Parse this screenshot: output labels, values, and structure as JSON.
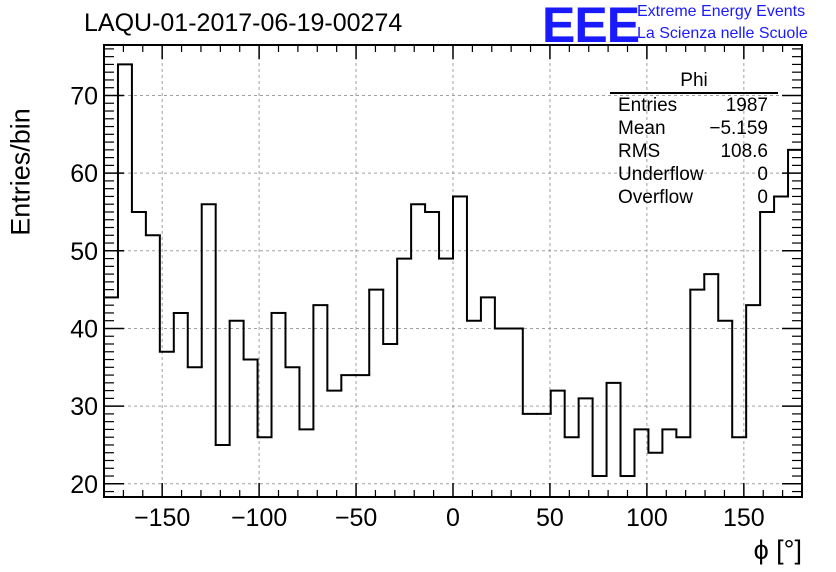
{
  "title": "LAQU-01-2017-06-19-00274",
  "logo": {
    "mark": "EEE",
    "line1": "Extreme Energy Events",
    "line2": "La Scienza nelle Scuole",
    "color": "#1a1aff"
  },
  "stats": {
    "name": "Phi",
    "rows": [
      {
        "label": "Entries",
        "value": "1987"
      },
      {
        "label": "Mean",
        "value": "−5.159"
      },
      {
        "label": "RMS",
        "value": "108.6"
      },
      {
        "label": "Underflow",
        "value": "0"
      },
      {
        "label": "Overflow",
        "value": "0"
      }
    ]
  },
  "chart_data": {
    "type": "bar",
    "style": "step-histogram",
    "title": "LAQU-01-2017-06-19-00274",
    "xlabel": "ϕ [°]",
    "ylabel": "Entries/bin",
    "xlim": [
      -180,
      180
    ],
    "ylim": [
      18.3,
      76.5
    ],
    "bin_width": 7.2,
    "xticks": [
      -150,
      -100,
      -50,
      0,
      50,
      100,
      150
    ],
    "xtick_labels": [
      "−150",
      "−100",
      "−50",
      "0",
      "50",
      "100",
      "150"
    ],
    "yticks": [
      20,
      30,
      40,
      50,
      60,
      70
    ],
    "ytick_labels": [
      "20",
      "30",
      "40",
      "50",
      "60",
      "70"
    ],
    "grid": true,
    "values": [
      44,
      74,
      55,
      52,
      37,
      42,
      35,
      56,
      25,
      41,
      36,
      26,
      42,
      35,
      27,
      43,
      32,
      34,
      34,
      45,
      38,
      49,
      56,
      55,
      49,
      57,
      41,
      44,
      40,
      40,
      29,
      29,
      32,
      26,
      31,
      21,
      33,
      21,
      27,
      24,
      27,
      26,
      45,
      47,
      41,
      26,
      43,
      55,
      57,
      63
    ]
  }
}
